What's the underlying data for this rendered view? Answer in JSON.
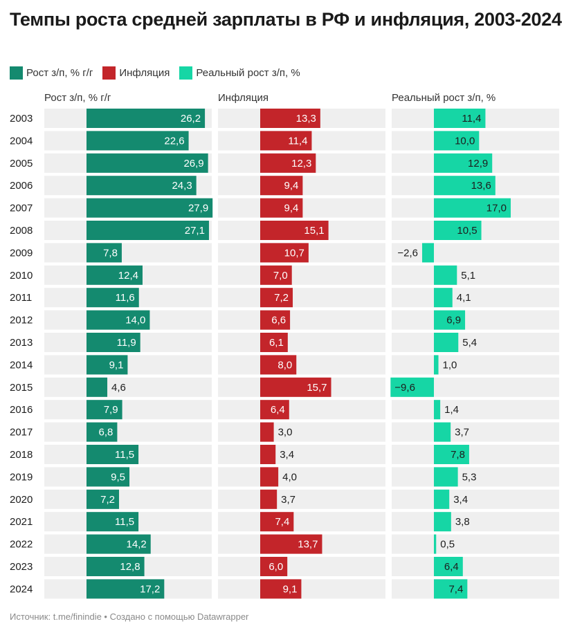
{
  "title": "Темпы роста средней зарплаты в РФ и инфляция, 2003-2024",
  "legend": [
    {
      "label": "Рост з/п, % г/г",
      "color": "#148a6f"
    },
    {
      "label": "Инфляция",
      "color": "#c3252a"
    },
    {
      "label": "Реальный рост з/п, %",
      "color": "#16d6a5"
    }
  ],
  "chart_data": {
    "type": "bar",
    "orientation": "horizontal",
    "categories": [
      "2003",
      "2004",
      "2005",
      "2006",
      "2007",
      "2008",
      "2009",
      "2010",
      "2011",
      "2012",
      "2013",
      "2014",
      "2015",
      "2016",
      "2017",
      "2018",
      "2019",
      "2020",
      "2021",
      "2022",
      "2023",
      "2024"
    ],
    "series": [
      {
        "name": "Рост з/п, % г/г",
        "color": "#148a6f",
        "values": [
          26.2,
          22.6,
          26.9,
          24.3,
          27.9,
          27.1,
          7.8,
          12.4,
          11.6,
          14.0,
          11.9,
          9.1,
          4.6,
          7.9,
          6.8,
          11.5,
          9.5,
          7.2,
          11.5,
          14.2,
          12.8,
          17.2
        ],
        "labels": [
          "26,2",
          "22,6",
          "26,9",
          "24,3",
          "27,9",
          "27,1",
          "7,8",
          "12,4",
          "11,6",
          "14,0",
          "11,9",
          "9,1",
          "4,6",
          "7,9",
          "6,8",
          "11,5",
          "9,5",
          "7,2",
          "11,5",
          "14,2",
          "12,8",
          "17,2"
        ]
      },
      {
        "name": "Инфляция",
        "color": "#c3252a",
        "values": [
          13.3,
          11.4,
          12.3,
          9.4,
          9.4,
          15.1,
          10.7,
          7.0,
          7.2,
          6.6,
          6.1,
          8.0,
          15.7,
          6.4,
          3.0,
          3.4,
          4.0,
          3.7,
          7.4,
          13.7,
          6.0,
          9.1
        ],
        "labels": [
          "13,3",
          "11,4",
          "12,3",
          "9,4",
          "9,4",
          "15,1",
          "10,7",
          "7,0",
          "7,2",
          "6,6",
          "6,1",
          "8,0",
          "15,7",
          "6,4",
          "3,0",
          "3,4",
          "4,0",
          "3,7",
          "7,4",
          "13,7",
          "6,0",
          "9,1"
        ]
      },
      {
        "name": "Реальный рост з/п, %",
        "color": "#16d6a5",
        "values": [
          11.4,
          10.0,
          12.9,
          13.6,
          17.0,
          10.5,
          -2.6,
          5.1,
          4.1,
          6.9,
          5.4,
          1.0,
          -9.6,
          1.4,
          3.7,
          7.8,
          5.3,
          3.4,
          3.8,
          0.5,
          6.4,
          7.4
        ],
        "labels": [
          "11,4",
          "10,0",
          "12,9",
          "13,6",
          "17,0",
          "10,5",
          "−2,6",
          "5,1",
          "4,1",
          "6,9",
          "5,4",
          "1,0",
          "−9,6",
          "1,4",
          "3,7",
          "7,8",
          "5,3",
          "3,4",
          "3,8",
          "0,5",
          "6,4",
          "7,4"
        ]
      }
    ],
    "xlim": [
      -9.6,
      30.2
    ],
    "grid": false,
    "legend_position": "top-left"
  },
  "source": "Источник: t.me/finindie • Создано с помощью Datawrapper"
}
